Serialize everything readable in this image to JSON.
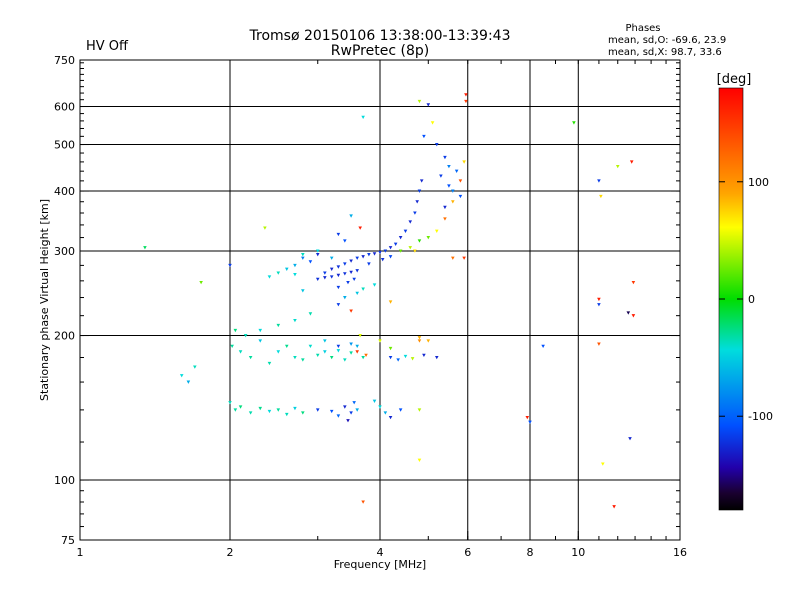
{
  "header": {
    "status": "HV Off",
    "status_color": "#e8281a",
    "title_line1": "Tromsø 20150106 13:38:00-13:39:43",
    "title_line2": "RwPretec (8p)",
    "stats_title": "Phases",
    "stats_line1": "mean, sd,O: -69.6, 23.9",
    "stats_line2": "mean, sd,X:  98.7, 33.6"
  },
  "chart_data": {
    "type": "scatter",
    "title": "Tromsø 20150106 13:38:00-13:39:43",
    "subtitle": "RwPretec (8p)",
    "xlabel": "Frequency [MHz]",
    "ylabel": "Stationary phase Virtual Height [km]",
    "xscale": "log",
    "yscale": "log",
    "xlim": [
      1,
      16
    ],
    "ylim": [
      75,
      750
    ],
    "xticks": [
      1,
      2,
      4,
      6,
      8,
      10,
      16
    ],
    "xtick_labels": [
      "1",
      "2",
      "4",
      "6",
      "8",
      "10",
      "16"
    ],
    "yticks": [
      75,
      100,
      200,
      300,
      400,
      500,
      600,
      750
    ],
    "ytick_labels": [
      "75",
      "100",
      "200",
      "300",
      "400",
      "500",
      "600",
      "750"
    ],
    "grid_x": [
      2,
      4,
      6,
      8,
      10
    ],
    "grid_y": [
      100,
      200,
      300,
      400,
      500,
      600
    ],
    "colorbar": {
      "label": "[deg]",
      "range": [
        -180,
        180
      ],
      "ticks": [
        100,
        0,
        -100
      ],
      "tick_labels": [
        "100",
        "0",
        "-100"
      ]
    },
    "points": [
      [
        1.35,
        305,
        0
      ],
      [
        1.75,
        258,
        60
      ],
      [
        1.6,
        165,
        -40
      ],
      [
        1.65,
        160,
        -60
      ],
      [
        1.7,
        172,
        -30
      ],
      [
        2.0,
        280,
        -110
      ],
      [
        2.02,
        190,
        -20
      ],
      [
        2.05,
        205,
        -10
      ],
      [
        2.1,
        185,
        -30
      ],
      [
        2.2,
        180,
        -20
      ],
      [
        2.3,
        195,
        -50
      ],
      [
        2.4,
        175,
        -25
      ],
      [
        2.5,
        185,
        -40
      ],
      [
        2.6,
        190,
        -15
      ],
      [
        2.7,
        180,
        -30
      ],
      [
        2.8,
        178,
        -20
      ],
      [
        2.9,
        190,
        -35
      ],
      [
        3.0,
        182,
        -25
      ],
      [
        3.1,
        185,
        -45
      ],
      [
        3.2,
        180,
        -10
      ],
      [
        3.3,
        186,
        -40
      ],
      [
        3.4,
        178,
        -30
      ],
      [
        3.5,
        184,
        -20
      ],
      [
        3.6,
        190,
        -60
      ],
      [
        3.7,
        180,
        -20
      ],
      [
        2.15,
        200,
        -30
      ],
      [
        2.3,
        205,
        -40
      ],
      [
        2.5,
        210,
        -20
      ],
      [
        2.7,
        215,
        -35
      ],
      [
        2.9,
        222,
        -25
      ],
      [
        3.1,
        195,
        -50
      ],
      [
        3.3,
        190,
        -110
      ],
      [
        3.5,
        192,
        -70
      ],
      [
        3.6,
        185,
        160
      ],
      [
        3.65,
        200,
        90
      ],
      [
        2.4,
        265,
        -40
      ],
      [
        2.5,
        270,
        -30
      ],
      [
        2.6,
        275,
        -50
      ],
      [
        2.7,
        280,
        -60
      ],
      [
        2.8,
        290,
        -80
      ],
      [
        2.9,
        285,
        -100
      ],
      [
        3.0,
        295,
        -120
      ],
      [
        3.1,
        270,
        -110
      ],
      [
        3.2,
        275,
        -120
      ],
      [
        3.3,
        278,
        -115
      ],
      [
        3.4,
        282,
        -110
      ],
      [
        3.5,
        286,
        -120
      ],
      [
        3.6,
        290,
        -110
      ],
      [
        3.7,
        292,
        -120
      ],
      [
        3.8,
        295,
        -110
      ],
      [
        3.9,
        296,
        -120
      ],
      [
        4.0,
        298,
        -115
      ],
      [
        4.1,
        300,
        -110
      ],
      [
        4.2,
        305,
        -120
      ],
      [
        4.3,
        310,
        -110
      ],
      [
        4.4,
        320,
        -120
      ],
      [
        4.5,
        330,
        -110
      ],
      [
        4.6,
        345,
        -120
      ],
      [
        4.7,
        360,
        -110
      ],
      [
        4.75,
        380,
        -120
      ],
      [
        4.8,
        400,
        -110
      ],
      [
        4.85,
        420,
        -120
      ],
      [
        3.0,
        262,
        -115
      ],
      [
        3.1,
        264,
        -120
      ],
      [
        3.2,
        265,
        -115
      ],
      [
        3.3,
        267,
        -120
      ],
      [
        3.4,
        269,
        -115
      ],
      [
        3.5,
        271,
        -120
      ],
      [
        3.6,
        273,
        -115
      ],
      [
        3.3,
        252,
        -110
      ],
      [
        3.45,
        258,
        -110
      ],
      [
        3.55,
        262,
        -110
      ],
      [
        3.8,
        282,
        -110
      ],
      [
        4.05,
        288,
        -115
      ],
      [
        4.2,
        292,
        -105
      ],
      [
        3.4,
        240,
        -60
      ],
      [
        3.6,
        245,
        -50
      ],
      [
        3.7,
        250,
        -30
      ],
      [
        3.9,
        255,
        -40
      ],
      [
        4.2,
        235,
        120
      ],
      [
        4.4,
        300,
        60
      ],
      [
        4.6,
        305,
        80
      ],
      [
        4.7,
        300,
        110
      ],
      [
        4.8,
        315,
        40
      ],
      [
        5.0,
        320,
        60
      ],
      [
        5.2,
        330,
        100
      ],
      [
        5.4,
        350,
        140
      ],
      [
        5.6,
        380,
        120
      ],
      [
        5.8,
        420,
        150
      ],
      [
        5.9,
        460,
        110
      ],
      [
        5.6,
        290,
        140
      ],
      [
        5.9,
        290,
        160
      ],
      [
        4.8,
        615,
        80
      ],
      [
        5.0,
        605,
        -120
      ],
      [
        5.1,
        555,
        100
      ],
      [
        4.9,
        520,
        -100
      ],
      [
        5.2,
        500,
        -110
      ],
      [
        5.4,
        470,
        -110
      ],
      [
        5.5,
        450,
        -80
      ],
      [
        5.7,
        440,
        -90
      ],
      [
        5.3,
        430,
        -110
      ],
      [
        5.5,
        410,
        -100
      ],
      [
        5.6,
        400,
        -80
      ],
      [
        5.8,
        390,
        -100
      ],
      [
        5.4,
        370,
        -120
      ],
      [
        5.95,
        635,
        170
      ],
      [
        5.95,
        615,
        160
      ],
      [
        3.7,
        570,
        -40
      ],
      [
        3.5,
        355,
        -60
      ],
      [
        3.65,
        335,
        170
      ],
      [
        3.4,
        315,
        -100
      ],
      [
        3.3,
        325,
        -110
      ],
      [
        3.2,
        290,
        -60
      ],
      [
        3.0,
        300,
        -40
      ],
      [
        2.8,
        295,
        -30
      ],
      [
        2.35,
        335,
        80
      ],
      [
        2.7,
        268,
        -40
      ],
      [
        2.8,
        248,
        -50
      ],
      [
        3.3,
        232,
        -110
      ],
      [
        3.5,
        225,
        160
      ],
      [
        2.0,
        145,
        -30
      ],
      [
        2.05,
        140,
        -20
      ],
      [
        2.1,
        142,
        -10
      ],
      [
        2.2,
        138,
        -25
      ],
      [
        2.3,
        141,
        -15
      ],
      [
        2.4,
        139,
        -40
      ],
      [
        2.5,
        140,
        -20
      ],
      [
        2.6,
        137,
        -30
      ],
      [
        2.7,
        141,
        -45
      ],
      [
        2.8,
        138,
        -10
      ],
      [
        3.0,
        140,
        -110
      ],
      [
        3.2,
        139,
        -100
      ],
      [
        3.3,
        136,
        -90
      ],
      [
        3.4,
        142,
        -120
      ],
      [
        3.5,
        138,
        -110
      ],
      [
        3.6,
        140,
        -60
      ],
      [
        3.45,
        133,
        -130
      ],
      [
        3.55,
        145,
        -90
      ],
      [
        3.9,
        146,
        -50
      ],
      [
        4.0,
        142,
        -40
      ],
      [
        4.1,
        138,
        -60
      ],
      [
        4.2,
        135,
        -120
      ],
      [
        4.4,
        140,
        -100
      ],
      [
        4.8,
        140,
        80
      ],
      [
        4.9,
        182,
        -120
      ],
      [
        4.2,
        180,
        -110
      ],
      [
        4.35,
        178,
        -90
      ],
      [
        4.5,
        181,
        -40
      ],
      [
        4.65,
        179,
        80
      ],
      [
        3.75,
        182,
        140
      ],
      [
        4.0,
        195,
        90
      ],
      [
        4.2,
        188,
        60
      ],
      [
        4.8,
        198,
        120
      ],
      [
        5.2,
        180,
        -120
      ],
      [
        8.0,
        132,
        -100
      ],
      [
        7.9,
        135,
        170
      ],
      [
        8.5,
        190,
        -100
      ],
      [
        9.8,
        555,
        40
      ],
      [
        11.0,
        420,
        -110
      ],
      [
        11.1,
        390,
        110
      ],
      [
        11.0,
        238,
        170
      ],
      [
        11.0,
        232,
        -110
      ],
      [
        11.0,
        192,
        150
      ],
      [
        11.2,
        108,
        100
      ],
      [
        12.0,
        450,
        80
      ],
      [
        12.8,
        460,
        170
      ],
      [
        12.6,
        223,
        -160
      ],
      [
        12.9,
        258,
        160
      ],
      [
        12.9,
        220,
        170
      ],
      [
        12.7,
        122,
        -120
      ],
      [
        11.8,
        88,
        170
      ],
      [
        3.7,
        90,
        150
      ],
      [
        4.8,
        110,
        100
      ],
      [
        4.8,
        195,
        130
      ],
      [
        5.0,
        195,
        120
      ]
    ]
  }
}
